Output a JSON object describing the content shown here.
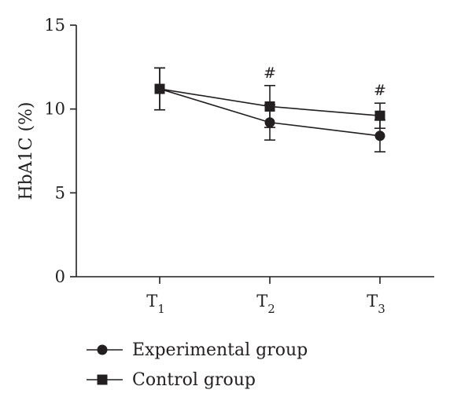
{
  "chart_data": {
    "type": "line",
    "categories": [
      "T1",
      "T2",
      "T3"
    ],
    "category_labels": [
      {
        "main": "T",
        "sub": "1"
      },
      {
        "main": "T",
        "sub": "2"
      },
      {
        "main": "T",
        "sub": "3"
      }
    ],
    "ylabel": "HbA1C (%)",
    "ylim": [
      0,
      15
    ],
    "yticks": [
      "0",
      "5",
      "10",
      "15"
    ],
    "series": [
      {
        "name": "Experimental group",
        "marker": "circle",
        "values": [
          11.2,
          9.2,
          8.4
        ],
        "error": [
          1.25,
          1.05,
          0.95
        ]
      },
      {
        "name": "Control group",
        "marker": "square",
        "values": [
          11.2,
          10.15,
          9.6
        ],
        "error": [
          1.25,
          1.25,
          0.75
        ]
      }
    ],
    "annotations": [
      {
        "category": "T2",
        "text": "#"
      },
      {
        "category": "T3",
        "text": "#"
      }
    ],
    "legend_position": "bottom-left",
    "grid": false,
    "color": "#231f20"
  }
}
